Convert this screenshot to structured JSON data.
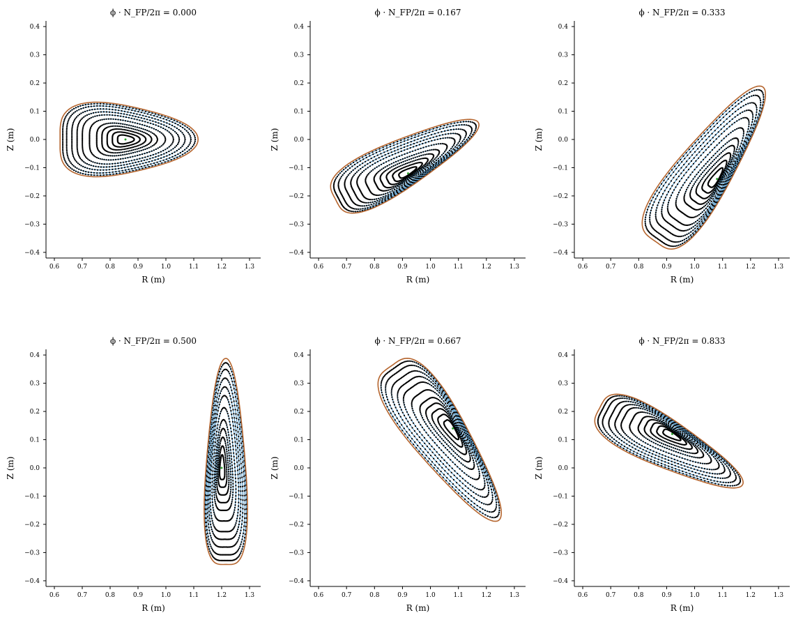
{
  "chart_data": [
    {
      "type": "scatter",
      "title": "ϕ · N_FP/2π = 0.000",
      "xlabel": "R (m)",
      "ylabel": "Z (m)",
      "xlim": [
        0.57,
        1.34
      ],
      "ylim": [
        -0.42,
        0.42
      ],
      "xticks": [
        "0.6",
        "0.7",
        "0.8",
        "0.9",
        "1.0",
        "1.1",
        "1.2",
        "1.3"
      ],
      "yticks": [
        "−0.4",
        "−0.3",
        "−0.2",
        "−0.1",
        "0.0",
        "0.1",
        "0.2",
        "0.3",
        "0.4"
      ],
      "grid": false,
      "surface": {
        "axis": [
          0.855,
          0.0
        ],
        "r_min": 0.605,
        "r_max": 1.1,
        "z_top": 0.13,
        "z_bottom": -0.13,
        "tilt_deg": 0
      }
    },
    {
      "type": "scatter",
      "title": "ϕ · N_FP/2π = 0.167",
      "xlabel": "R (m)",
      "ylabel": "Z (m)",
      "xlim": [
        0.57,
        1.34
      ],
      "ylim": [
        -0.42,
        0.42
      ],
      "xticks": [
        "0.6",
        "0.7",
        "0.8",
        "0.9",
        "1.0",
        "1.1",
        "1.2",
        "1.3"
      ],
      "yticks": [
        "−0.4",
        "−0.3",
        "−0.2",
        "−0.1",
        "0.0",
        "0.1",
        "0.2",
        "0.3",
        "0.4"
      ],
      "grid": false,
      "surface": {
        "axis": [
          0.92,
          -0.12
        ],
        "r_min": 0.66,
        "r_max": 1.14,
        "z_top": 0.08,
        "z_bottom": -0.25,
        "tilt_deg": 28
      }
    },
    {
      "type": "scatter",
      "title": "ϕ · N_FP/2π = 0.333",
      "xlabel": "R (m)",
      "ylabel": "Z (m)",
      "xlim": [
        0.57,
        1.34
      ],
      "ylim": [
        -0.42,
        0.42
      ],
      "xticks": [
        "0.6",
        "0.7",
        "0.8",
        "0.9",
        "1.0",
        "1.1",
        "1.2",
        "1.3"
      ],
      "yticks": [
        "−0.4",
        "−0.3",
        "−0.2",
        "−0.1",
        "0.0",
        "0.1",
        "0.2",
        "0.3",
        "0.4"
      ],
      "grid": false,
      "surface": {
        "axis": [
          1.08,
          -0.14
        ],
        "r_min": 0.85,
        "r_max": 1.23,
        "z_top": 0.17,
        "z_bottom": -0.38,
        "tilt_deg": 55
      }
    },
    {
      "type": "scatter",
      "title": "ϕ · N_FP/2π = 0.500",
      "xlabel": "R (m)",
      "ylabel": "Z (m)",
      "xlim": [
        0.57,
        1.34
      ],
      "ylim": [
        -0.42,
        0.42
      ],
      "xticks": [
        "0.6",
        "0.7",
        "0.8",
        "0.9",
        "1.0",
        "1.1",
        "1.2",
        "1.3"
      ],
      "yticks": [
        "−0.4",
        "−0.3",
        "−0.2",
        "−0.1",
        "0.0",
        "0.1",
        "0.2",
        "0.3",
        "0.4"
      ],
      "grid": false,
      "surface": {
        "axis": [
          1.2,
          0.0
        ],
        "r_min": 1.13,
        "r_max": 1.3,
        "z_top": 0.365,
        "z_bottom": -0.365,
        "tilt_deg": 90
      }
    },
    {
      "type": "scatter",
      "title": "ϕ · N_FP/2π = 0.667",
      "xlabel": "R (m)",
      "ylabel": "Z (m)",
      "xlim": [
        0.57,
        1.34
      ],
      "ylim": [
        -0.42,
        0.42
      ],
      "xticks": [
        "0.6",
        "0.7",
        "0.8",
        "0.9",
        "1.0",
        "1.1",
        "1.2",
        "1.3"
      ],
      "yticks": [
        "−0.4",
        "−0.3",
        "−0.2",
        "−0.1",
        "0.0",
        "0.1",
        "0.2",
        "0.3",
        "0.4"
      ],
      "grid": false,
      "surface": {
        "axis": [
          1.08,
          0.14
        ],
        "r_min": 0.85,
        "r_max": 1.23,
        "z_top": 0.38,
        "z_bottom": -0.17,
        "tilt_deg": -55
      }
    },
    {
      "type": "scatter",
      "title": "ϕ · N_FP/2π = 0.833",
      "xlabel": "R (m)",
      "ylabel": "Z (m)",
      "xlim": [
        0.57,
        1.34
      ],
      "ylim": [
        -0.42,
        0.42
      ],
      "xticks": [
        "0.6",
        "0.7",
        "0.8",
        "0.9",
        "1.0",
        "1.1",
        "1.2",
        "1.3"
      ],
      "yticks": [
        "−0.4",
        "−0.3",
        "−0.2",
        "−0.1",
        "0.0",
        "0.1",
        "0.2",
        "0.3",
        "0.4"
      ],
      "grid": false,
      "surface": {
        "axis": [
          0.92,
          0.12
        ],
        "r_min": 0.66,
        "r_max": 1.14,
        "z_top": 0.25,
        "z_bottom": -0.08,
        "tilt_deg": -28
      }
    }
  ],
  "colors": {
    "boundary": "#b5652e",
    "surfaces": "#1f77b4",
    "points": "#000000",
    "axis_marker": "#2ca02c"
  }
}
